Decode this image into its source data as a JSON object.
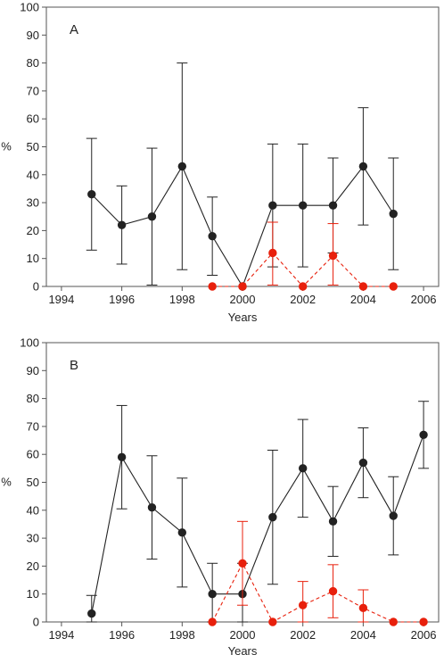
{
  "chart_data": [
    {
      "type": "line",
      "panel_label": "A",
      "xlabel": "Years",
      "ylabel": "%",
      "xlim": [
        1993.5,
        2006.5
      ],
      "ylim": [
        0,
        100
      ],
      "xticks": [
        1994,
        1996,
        1998,
        2000,
        2002,
        2004,
        2006
      ],
      "yticks": [
        0,
        10,
        20,
        30,
        40,
        50,
        60,
        70,
        80,
        90,
        100
      ],
      "grid": false,
      "series": [
        {
          "color": "#222222",
          "line_style": "solid",
          "points": [
            {
              "x": 1995,
              "y": 33,
              "lo": 13,
              "hi": 53
            },
            {
              "x": 1996,
              "y": 22,
              "lo": 8,
              "hi": 36
            },
            {
              "x": 1997,
              "y": 25,
              "lo": 0.5,
              "hi": 49.5
            },
            {
              "x": 1998,
              "y": 43,
              "lo": 6,
              "hi": 80
            },
            {
              "x": 1999,
              "y": 18,
              "lo": 4,
              "hi": 32
            },
            {
              "x": 2000,
              "y": 0,
              "lo": 0,
              "hi": 0
            },
            {
              "x": 2001,
              "y": 29,
              "lo": 7,
              "hi": 51
            },
            {
              "x": 2002,
              "y": 29,
              "lo": 7,
              "hi": 51
            },
            {
              "x": 2003,
              "y": 29,
              "lo": 12,
              "hi": 46
            },
            {
              "x": 2004,
              "y": 43,
              "lo": 22,
              "hi": 64
            },
            {
              "x": 2005,
              "y": 26,
              "lo": 6,
              "hi": 46
            }
          ]
        },
        {
          "color": "#e8200c",
          "line_style": "dashed",
          "points": [
            {
              "x": 1999,
              "y": 0,
              "lo": 0,
              "hi": 0
            },
            {
              "x": 2000,
              "y": 0,
              "lo": 0,
              "hi": 0
            },
            {
              "x": 2001,
              "y": 12,
              "lo": 0.5,
              "hi": 23
            },
            {
              "x": 2002,
              "y": 0,
              "lo": 0,
              "hi": 0
            },
            {
              "x": 2003,
              "y": 11,
              "lo": 0.5,
              "hi": 22.5
            },
            {
              "x": 2004,
              "y": 0,
              "lo": 0,
              "hi": 0
            },
            {
              "x": 2005,
              "y": 0,
              "lo": 0,
              "hi": 0
            }
          ]
        }
      ]
    },
    {
      "type": "line",
      "panel_label": "B",
      "xlabel": "Years",
      "ylabel": "%",
      "xlim": [
        1993.5,
        2006.5
      ],
      "ylim": [
        0,
        100
      ],
      "xticks": [
        1994,
        1996,
        1998,
        2000,
        2002,
        2004,
        2006
      ],
      "yticks": [
        0,
        10,
        20,
        30,
        40,
        50,
        60,
        70,
        80,
        90,
        100
      ],
      "grid": false,
      "series": [
        {
          "color": "#222222",
          "line_style": "solid",
          "points": [
            {
              "x": 1995,
              "y": 3,
              "lo": 0,
              "hi": 9.5
            },
            {
              "x": 1996,
              "y": 59,
              "lo": 40.5,
              "hi": 77.5
            },
            {
              "x": 1997,
              "y": 41,
              "lo": 22.5,
              "hi": 59.5
            },
            {
              "x": 1998,
              "y": 32,
              "lo": 12.5,
              "hi": 51.5
            },
            {
              "x": 1999,
              "y": 10,
              "lo": 0,
              "hi": 21
            },
            {
              "x": 2000,
              "y": 10,
              "lo": 0,
              "hi": 21
            },
            {
              "x": 2001,
              "y": 37.5,
              "lo": 13.5,
              "hi": 61.5
            },
            {
              "x": 2002,
              "y": 55,
              "lo": 37.5,
              "hi": 72.5
            },
            {
              "x": 2003,
              "y": 36,
              "lo": 23.5,
              "hi": 48.5
            },
            {
              "x": 2004,
              "y": 57,
              "lo": 44.5,
              "hi": 69.5
            },
            {
              "x": 2005,
              "y": 38,
              "lo": 24,
              "hi": 52
            },
            {
              "x": 2006,
              "y": 67,
              "lo": 55,
              "hi": 79
            }
          ]
        },
        {
          "color": "#e8200c",
          "line_style": "dashed",
          "points": [
            {
              "x": 1999,
              "y": 0,
              "lo": 0,
              "hi": 0
            },
            {
              "x": 2000,
              "y": 21,
              "lo": 6,
              "hi": 36
            },
            {
              "x": 2001,
              "y": 0,
              "lo": 0,
              "hi": 0
            },
            {
              "x": 2002,
              "y": 6,
              "lo": 0,
              "hi": 14.5
            },
            {
              "x": 2003,
              "y": 11,
              "lo": 1.5,
              "hi": 20.5
            },
            {
              "x": 2004,
              "y": 5,
              "lo": 0,
              "hi": 11.5
            },
            {
              "x": 2005,
              "y": 0,
              "lo": 0,
              "hi": 0
            },
            {
              "x": 2006,
              "y": 0,
              "lo": 0,
              "hi": 0
            }
          ]
        }
      ]
    }
  ]
}
